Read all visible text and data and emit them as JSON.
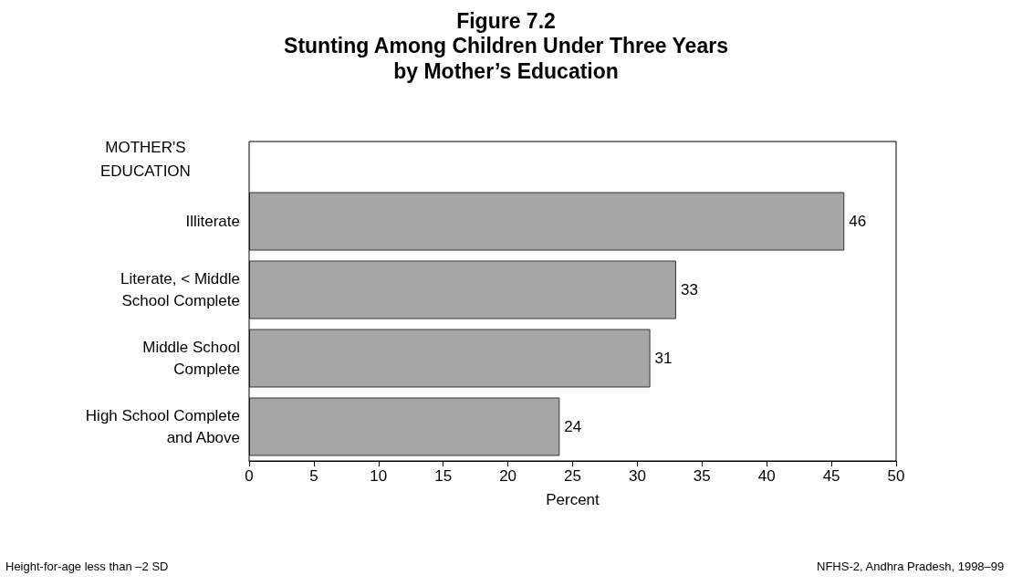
{
  "chart_data": {
    "type": "bar",
    "orientation": "horizontal",
    "title": "Figure 7.2",
    "subtitle": "Stunting Among Children Under Three Years\nby Mother’s Education",
    "ylabel": "MOTHER'S\nEDUCATION",
    "xlabel": "Percent",
    "categories": [
      "Illiterate",
      "Literate, < Middle\nSchool Complete",
      "Middle School\nComplete",
      "High School Complete\nand Above"
    ],
    "values": [
      46,
      33,
      31,
      24
    ],
    "color": "#a6a6a6",
    "data_labels": true,
    "xlim": [
      0,
      50
    ],
    "xticks": [
      0,
      5,
      10,
      15,
      20,
      25,
      30,
      35,
      40,
      45,
      50
    ],
    "grid": false,
    "annotations": [
      "Height-for-age less than –2 SD",
      "NFHS-2, Andhra Pradesh, 1998–99"
    ]
  }
}
